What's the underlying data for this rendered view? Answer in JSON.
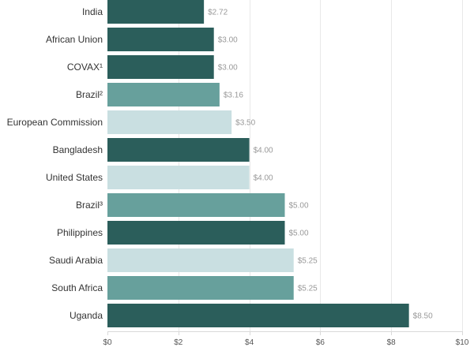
{
  "chart_data": {
    "type": "bar",
    "orientation": "horizontal",
    "categories": [
      "India",
      "African Union",
      "COVAX¹",
      "Brazil²",
      "European Commission",
      "Bangladesh",
      "United States",
      "Brazil³",
      "Philippines",
      "Saudi Arabia",
      "South Africa",
      "Uganda"
    ],
    "values": [
      2.72,
      3.0,
      3.0,
      3.16,
      3.5,
      4.0,
      4.0,
      5.0,
      5.0,
      5.25,
      5.25,
      8.5
    ],
    "value_labels": [
      "$2.72",
      "$3.00",
      "$3.00",
      "$3.16",
      "$3.50",
      "$4.00",
      "$4.00",
      "$5.00",
      "$5.00",
      "$5.25",
      "$5.25",
      "$8.50"
    ],
    "bar_colors": [
      "#2b5e5b",
      "#2b5e5b",
      "#2b5e5b",
      "#67a09c",
      "#c9dfe1",
      "#2b5e5b",
      "#c9dfe1",
      "#67a09c",
      "#2b5e5b",
      "#c9dfe1",
      "#67a09c",
      "#2b5e5b"
    ],
    "xlim": [
      0,
      10
    ],
    "x_ticks": [
      0,
      2,
      4,
      6,
      8,
      10
    ],
    "x_tick_labels": [
      "$0",
      "$2",
      "$4",
      "$6",
      "$8",
      "$10"
    ],
    "grid": "vertical",
    "title": "",
    "xlabel": "",
    "ylabel": ""
  }
}
